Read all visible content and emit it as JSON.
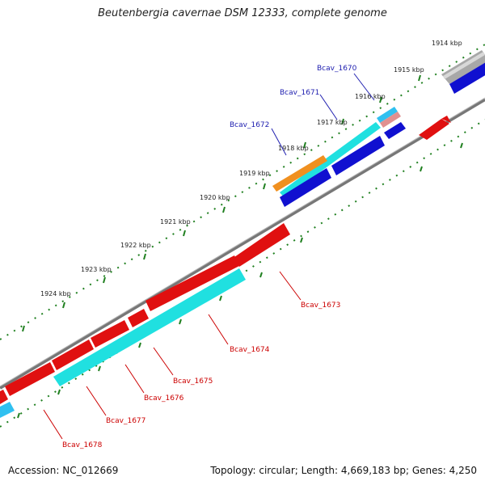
{
  "title": "Beutenbergia cavernae DSM 12333, complete genome",
  "footer": {
    "accession": "Accession: NC_012669",
    "summary": "Topology: circular; Length: 4,669,183 bp; Genes: 4,250"
  },
  "kbp_ticks": [
    "1914 kbp",
    "1915 kbp",
    "1916 kbp",
    "1917 kbp",
    "1918 kbp",
    "1919 kbp",
    "1920 kbp",
    "1921 kbp",
    "1922 kbp",
    "1923 kbp",
    "1924 kbp"
  ],
  "genes_top": [
    "Bcav_1670",
    "Bcav_1671",
    "Bcav_1672"
  ],
  "genes_bottom": [
    "Bcav_1673",
    "Bcav_1674",
    "Bcav_1675",
    "Bcav_1676",
    "Bcav_1677",
    "Bcav_1678"
  ],
  "colors": {
    "forward_cds": "#e01010",
    "reverse_cds": "#1010d0",
    "rna": "#20e0e0",
    "gray": "#a0a0a0",
    "tick_green": "#208020",
    "orange": "#f09020"
  }
}
